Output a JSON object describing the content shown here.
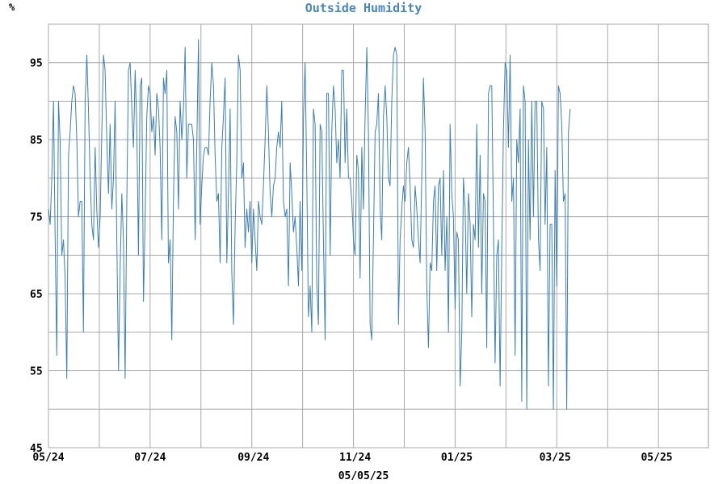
{
  "chart_data": {
    "type": "line",
    "title": "Outside Humidity",
    "ylabel": "%",
    "xlabel": "05/05/25",
    "ylim": [
      45,
      100
    ],
    "yticks": [
      45,
      55,
      65,
      75,
      85,
      95
    ],
    "xticks": [
      {
        "index": 0,
        "label": "05/24"
      },
      {
        "index": 61,
        "label": "07/24"
      },
      {
        "index": 123,
        "label": "09/24"
      },
      {
        "index": 184,
        "label": "11/24"
      },
      {
        "index": 245,
        "label": "01/25"
      },
      {
        "index": 304,
        "label": "03/25"
      },
      {
        "index": 365,
        "label": "05/25"
      }
    ],
    "xmax": 396,
    "grid": true,
    "color": "#3d7fb5",
    "series": [
      {
        "name": "Outside Humidity",
        "values": [
          76,
          74,
          80,
          90,
          72,
          57,
          90,
          85,
          70,
          72,
          67,
          54,
          83,
          86,
          90,
          92,
          91,
          85,
          75,
          77,
          77,
          60,
          90,
          96,
          89,
          80,
          74,
          72,
          84,
          76,
          71,
          75,
          86,
          96,
          94,
          85,
          78,
          87,
          76,
          80,
          90,
          72,
          55,
          68,
          78,
          72,
          54,
          77,
          94,
          95,
          89,
          84,
          94,
          87,
          70,
          92,
          93,
          64,
          75,
          88,
          92,
          91,
          86,
          88,
          83,
          91,
          89,
          84,
          72,
          93,
          91,
          94,
          69,
          72,
          59,
          77,
          88,
          86,
          76,
          90,
          85,
          89,
          97,
          80,
          87,
          87,
          87,
          85,
          72,
          84,
          98,
          74,
          79,
          83,
          84,
          84,
          83,
          90,
          95,
          92,
          83,
          77,
          78,
          69,
          84,
          88,
          93,
          69,
          78,
          89,
          68,
          61,
          74,
          82,
          96,
          94,
          80,
          82,
          71,
          76,
          73,
          77,
          69,
          76,
          72,
          68,
          77,
          75,
          74,
          79,
          85,
          92,
          86,
          78,
          75,
          79,
          80,
          84,
          86,
          84,
          90,
          77,
          75,
          76,
          66,
          82,
          78,
          73,
          75,
          71,
          66,
          77,
          68,
          88,
          95,
          80,
          62,
          66,
          60,
          89,
          87,
          66,
          61,
          87,
          86,
          72,
          59,
          91,
          91,
          70,
          86,
          92,
          89,
          82,
          85,
          80,
          94,
          94,
          82,
          89,
          80,
          80,
          77,
          72,
          70,
          83,
          81,
          67,
          84,
          76,
          88,
          97,
          86,
          61,
          59,
          72,
          86,
          87,
          91,
          76,
          72,
          88,
          92,
          88,
          80,
          79,
          90,
          96,
          97,
          96,
          61,
          72,
          76,
          79,
          77,
          82,
          84,
          79,
          72,
          71,
          79,
          76,
          72,
          69,
          80,
          93,
          86,
          66,
          58,
          69,
          68,
          77,
          79,
          68,
          79,
          80,
          70,
          81,
          68,
          75,
          60,
          87,
          78,
          75,
          63,
          73,
          72,
          53,
          60,
          80,
          76,
          65,
          78,
          74,
          62,
          74,
          72,
          87,
          71,
          83,
          65,
          78,
          77,
          58,
          91,
          92,
          92,
          74,
          56,
          70,
          72,
          53,
          71,
          86,
          95,
          94,
          84,
          96,
          77,
          80,
          57,
          85,
          82,
          89,
          51,
          92,
          90,
          50,
          85,
          72,
          90,
          75,
          90,
          90,
          72,
          68,
          90,
          89,
          74,
          84,
          53,
          74,
          74,
          50,
          81,
          66,
          92,
          91,
          87,
          77,
          78,
          50,
          86,
          89
        ]
      }
    ]
  }
}
